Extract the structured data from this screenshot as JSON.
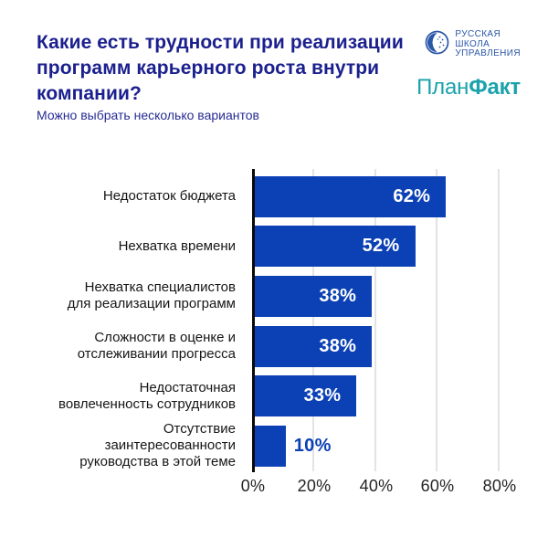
{
  "header": {
    "title": "Какие есть трудности при реализации\nпрограмм карьерного роста внутри\nкомпании?",
    "subtitle": "Можно выбрать несколько вариантов",
    "title_color": "#1B208E"
  },
  "logos": {
    "rsu_school": {
      "line1": "РУССКАЯ",
      "line2": "ШКОЛА",
      "line3": "УПРАВЛЕНИЯ",
      "icon": "globe-emblem-icon",
      "color": "#2B57A8"
    },
    "planfakt": {
      "part_regular": "План",
      "part_bold": "Факт",
      "color": "#1BA2AC"
    }
  },
  "chart_data": {
    "type": "bar",
    "orientation": "horizontal",
    "title": "Какие есть трудности при реализации программ карьерного роста внутри компании?",
    "subtitle": "Можно выбрать несколько вариантов",
    "categories": [
      "Недостаток бюджета",
      "Нехватка времени",
      "Нехватка специалистов\nдля реализации программ",
      "Сложности в оценке и\nотслеживании прогресса",
      "Недостаточная\nвовлеченность сотрудников",
      "Отсутствие\nзаинтересованности\nруководства в этой теме"
    ],
    "values": [
      62,
      52,
      38,
      38,
      33,
      10
    ],
    "value_labels": [
      "62%",
      "52%",
      "38%",
      "38%",
      "33%",
      "10%"
    ],
    "value_label_position": [
      "inside",
      "inside",
      "inside",
      "inside",
      "inside",
      "outside"
    ],
    "x_ticks": [
      "0%",
      "20%",
      "40%",
      "60%",
      "80%"
    ],
    "xlim": [
      0,
      80
    ],
    "grid": true,
    "bar_color": "#0C41B5",
    "value_label_color_inside": "#FFFFFF",
    "value_label_color_outside": "#0C41B5",
    "axis_color": "#0A0A0A",
    "gridline_color": "#E3E3E3"
  }
}
